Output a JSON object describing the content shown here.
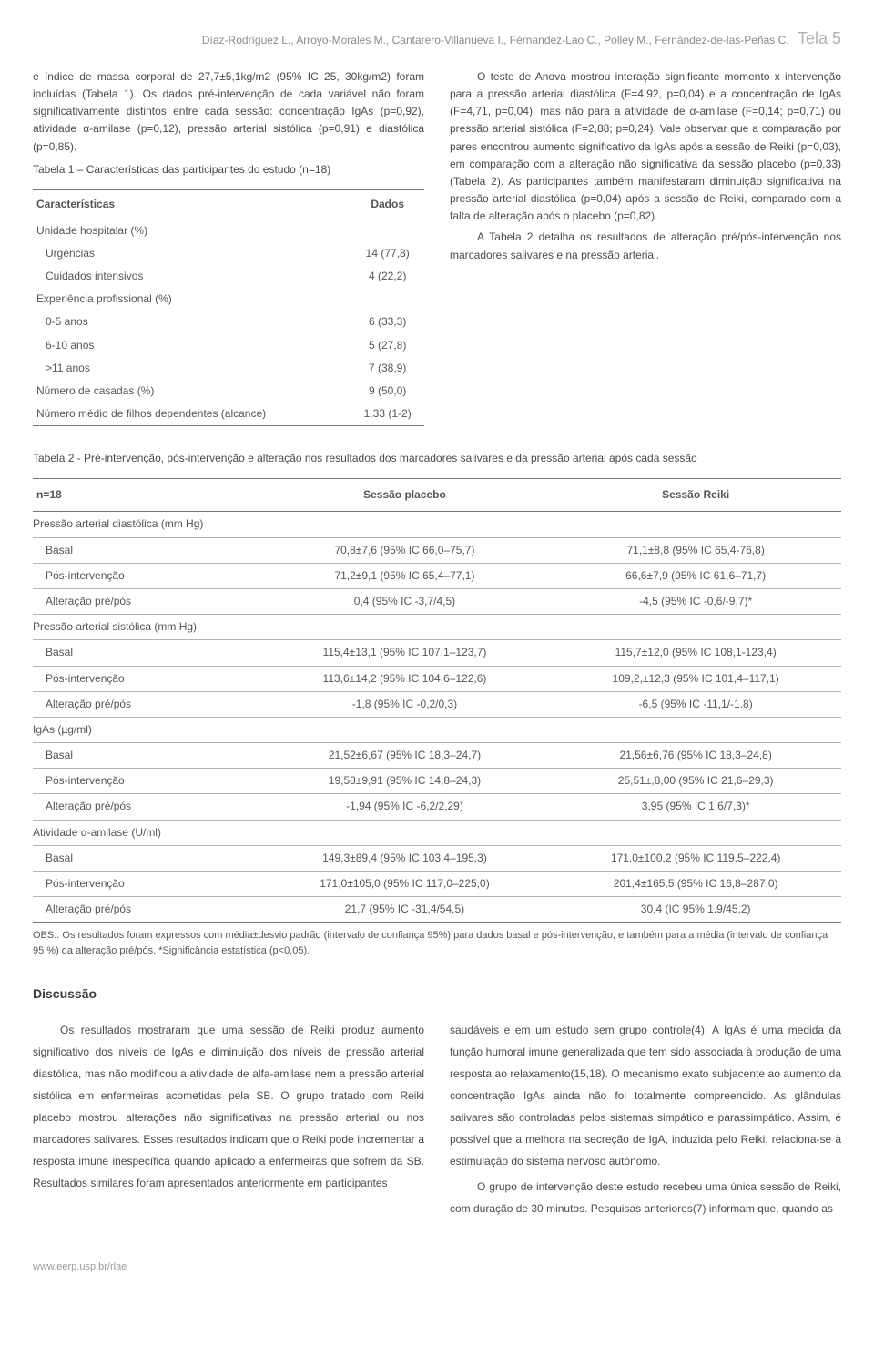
{
  "running_head": {
    "authors": "Díaz-Rodríguez L., Arroyo-Morales M., Cantarero-Villanueva I., Férnandez-Lao C., Polley M., Fernández-de-las-Peñas C.",
    "tela_label": "Tela 5"
  },
  "left_col": {
    "p1": "e índice de massa corporal de 27,7±5,1kg/m2 (95% IC 25, 30kg/m2) foram incluídas (Tabela 1). Os dados pré-intervenção de cada variável não foram significativamente distintos entre cada sessão: concentração IgAs (p=0,92), atividade α-amilase (p=0,12), pressão arterial sistólica (p=0,91) e diastólica (p=0,85).",
    "t1_caption": "Tabela 1 – Características das participantes do estudo (n=18)",
    "t1_head_c1": "Características",
    "t1_head_c2": "Dados",
    "t1_rows": [
      {
        "c1": "Unidade hospitalar (%)",
        "c2": "",
        "pad": 0
      },
      {
        "c1": "Urgências",
        "c2": "14 (77,8)",
        "pad": 1
      },
      {
        "c1": "Cuidados intensivos",
        "c2": "4 (22,2)",
        "pad": 1
      },
      {
        "c1": "Experiência profissional (%)",
        "c2": "",
        "pad": 0
      },
      {
        "c1": "0-5 anos",
        "c2": "6 (33,3)",
        "pad": 1
      },
      {
        "c1": "6-10 anos",
        "c2": "5 (27,8)",
        "pad": 1
      },
      {
        "c1": ">11 anos",
        "c2": "7 (38,9)",
        "pad": 1
      },
      {
        "c1": "Número de casadas (%)",
        "c2": "9 (50,0)",
        "pad": 0
      },
      {
        "c1": "Número médio de filhos dependentes (alcance)",
        "c2": "1.33 (1-2)",
        "pad": 0
      }
    ]
  },
  "right_col": {
    "p1": "O teste de Anova mostrou interação significante momento x intervenção para a pressão arterial diastólica (F=4,92, p=0,04) e a concentração de IgAs (F=4,71, p=0,04), mas não para a atividade de α-amilase (F=0,14; p=0,71) ou pressão arterial sistólica (F=2,88; p=0,24). Vale observar que a comparação por pares encontrou aumento significativo da IgAs após a sessão de Reiki (p=0,03), em comparação com a alteração não significativa da sessão placebo (p=0,33) (Tabela 2). As participantes também manifestaram diminuição significativa na pressão arterial diastólica (p=0,04) após a sessão de Reiki, comparado com a falta de alteração após o placebo (p=0,82).",
    "p2": "A Tabela 2 detalha os resultados de alteração pré/pós-intervenção nos marcadores salivares e na pressão arterial."
  },
  "t2": {
    "caption": "Tabela 2 - Pré-intervenção, pós-intervenção e alteração nos resultados dos marcadores salivares e da pressão arterial após cada sessão",
    "h1": "n=18",
    "h2": "Sessão placebo",
    "h3": "Sessão Reiki",
    "rows": [
      {
        "type": "group",
        "c1": "Pressão arterial diastólica (mm Hg)",
        "c2": "",
        "c3": ""
      },
      {
        "type": "sub",
        "c1": "Basal",
        "c2": "70,8±7,6 (95% IC 66,0–75,7)",
        "c3": "71,1±8,8 (95% IC 65,4-76,8)"
      },
      {
        "type": "sub",
        "c1": "Pós-intervenção",
        "c2": "71,2±9,1 (95% IC 65,4–77,1)",
        "c3": "66,6±7,9 (95% IC 61,6–71,7)"
      },
      {
        "type": "sub",
        "c1": "Alteração pré/pós",
        "c2": "0,4 (95% IC -3,7/4,5)",
        "c3": "-4,5 (95% IC -0,6/-9,7)*"
      },
      {
        "type": "group",
        "c1": "Pressão arterial sistólica (mm Hg)",
        "c2": "",
        "c3": ""
      },
      {
        "type": "sub",
        "c1": "Basal",
        "c2": "115,4±13,1 (95% IC 107,1–123,7)",
        "c3": "115,7±12,0 (95% IC 108,1-123,4)"
      },
      {
        "type": "sub",
        "c1": "Pós-intervenção",
        "c2": "113,6±14,2 (95% IC 104,6–122,6)",
        "c3": "109,2,±12,3 (95% IC 101,4–117,1)"
      },
      {
        "type": "sub",
        "c1": "Alteração pré/pós",
        "c2": "-1,8 (95% IC -0,2/0,3)",
        "c3": "-6,5 (95% IC -11,1/-1.8)"
      },
      {
        "type": "group",
        "c1": "IgAs (µg/ml)",
        "c2": "",
        "c3": ""
      },
      {
        "type": "sub",
        "c1": "Basal",
        "c2": "21,52±6,67 (95% IC 18,3–24,7)",
        "c3": "21,56±6,76 (95% IC 18,3–24,8)"
      },
      {
        "type": "sub",
        "c1": "Pós-intervenção",
        "c2": "19,58±9,91 (95% IC 14,8–24,3)",
        "c3": "25,51±,8,00 (95% IC 21,6–29,3)"
      },
      {
        "type": "sub",
        "c1": "Alteração pré/pós",
        "c2": "-1,94 (95% IC -6,2/2,29)",
        "c3": "3,95 (95% IC 1,6/7,3)*"
      },
      {
        "type": "group",
        "c1": "Atividade α-amilase (U/ml)",
        "c2": "",
        "c3": ""
      },
      {
        "type": "sub",
        "c1": "Basal",
        "c2": "149,3±89,4 (95% IC 103.4–195,3)",
        "c3": "171,0±100,2 (95% IC 119,5–222,4)"
      },
      {
        "type": "sub",
        "c1": "Pós-intervenção",
        "c2": "171,0±105,0 (95% IC 117,0–225,0)",
        "c3": "201,4±165,5 (95% IC 16,8–287,0)"
      },
      {
        "type": "sub last",
        "c1": "Alteração pré/pós",
        "c2": "21,7 (95% IC -31,4/54,5)",
        "c3": "30,4 (IC 95% 1.9/45,2)"
      }
    ],
    "obs": "OBS.: Os resultados foram expressos com média±desvio padrão (intervalo de confiança 95%) para dados basal e pós-intervenção, e também para a média (intervalo de confiança 95 %) da alteração pré/pós. *Significância estatística (p<0,05)."
  },
  "discussion": {
    "heading": "Discussão",
    "left_p1": "Os resultados mostraram que uma sessão de Reiki produz aumento significativo dos níveis de IgAs e diminuição dos níveis de pressão arterial diastólica, mas não modificou a atividade de alfa-amilase nem a pressão arterial sistólica em enfermeiras acometidas pela SB. O grupo tratado com Reiki placebo mostrou alterações não significativas na pressão arterial ou nos marcadores salivares. Esses resultados indicam que o Reiki pode incrementar a resposta imune inespecífica quando aplicado a enfermeiras que sofrem da SB. Resultados similares foram apresentados anteriormente em participantes",
    "right_p1": "saudáveis e em um estudo sem grupo controle(4). A IgAs é uma medida da função humoral imune generalizada que tem sido associada à produção de uma resposta ao relaxamento(15,18). O mecanismo exato subjacente ao aumento da concentração IgAs ainda não foi totalmente compreendido. As glândulas salivares são controladas pelos sistemas simpático e parassimpático. Assim, é possível que a melhora na secreção de IgA, induzida pelo Reiki, relaciona-se à estimulação do sistema nervoso autônomo.",
    "right_p2": "O grupo de intervenção deste estudo recebeu uma única sessão de Reiki, com duração de 30 minutos. Pesquisas anteriores(7) informam que, quando as"
  },
  "footer_url": "www.eerp.usp.br/rlae"
}
